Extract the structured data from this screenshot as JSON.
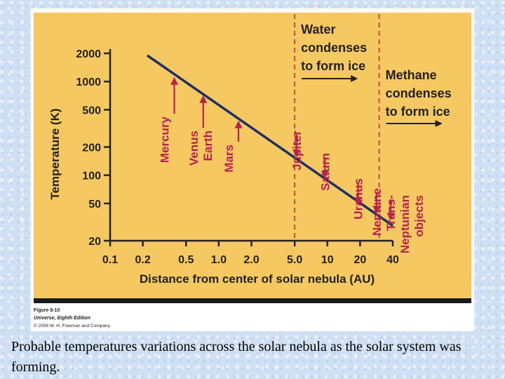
{
  "colors": {
    "panel": "#f6c862",
    "line": "#1c2f66",
    "planet": "#b8224e",
    "dashed": "#c0503a",
    "text": "#222222",
    "bottom_bar": "#1a1a1a"
  },
  "chart_data": {
    "type": "line",
    "title": "",
    "xlabel": "Distance from center of solar nebula (AU)",
    "ylabel": "Temperature (K)",
    "x_scale": "log",
    "y_scale": "log",
    "xlim": [
      0.1,
      40
    ],
    "ylim": [
      20,
      2000
    ],
    "x_ticks": [
      {
        "value": 0.1,
        "label": "0.1"
      },
      {
        "value": 0.2,
        "label": "0.2"
      },
      {
        "value": 0.5,
        "label": "0.5"
      },
      {
        "value": 1.0,
        "label": "1.0"
      },
      {
        "value": 2.0,
        "label": "2.0"
      },
      {
        "value": 5.0,
        "label": "5.0"
      },
      {
        "value": 10,
        "label": "10"
      },
      {
        "value": 20,
        "label": "20"
      },
      {
        "value": 40,
        "label": "40"
      }
    ],
    "y_ticks": [
      {
        "value": 2000,
        "label": "2000"
      },
      {
        "value": 1000,
        "label": "1000"
      },
      {
        "value": 500,
        "label": "500"
      },
      {
        "value": 200,
        "label": "200"
      },
      {
        "value": 100,
        "label": "100"
      },
      {
        "value": 50,
        "label": "50"
      },
      {
        "value": 20,
        "label": "20"
      }
    ],
    "series": [
      {
        "x": [
          0.22,
          40
        ],
        "y": [
          1900,
          29
        ]
      }
    ],
    "grid": false,
    "legend": "none",
    "condensation_lines": [
      {
        "x": 5.0,
        "lines": [
          "Water",
          "condenses",
          "to form ice"
        ]
      },
      {
        "x": 30,
        "lines": [
          "Methane",
          "condenses",
          "to form ice"
        ]
      }
    ],
    "planet_labels": [
      {
        "x": 0.39,
        "lines": [
          "Mercury"
        ]
      },
      {
        "x": 0.72,
        "lines": [
          "Venus",
          "Earth"
        ]
      },
      {
        "x": 1.52,
        "lines": [
          "Mars"
        ]
      },
      {
        "x": 5.2,
        "lines": [
          "Jupiter"
        ]
      },
      {
        "x": 9.5,
        "lines": [
          "Saturn"
        ]
      },
      {
        "x": 19.2,
        "lines": [
          "Uranus"
        ]
      },
      {
        "x": 30.1,
        "lines": [
          "Neptune"
        ]
      },
      {
        "x": 40,
        "lines": [
          "Trans-",
          "Neptunian",
          "objects"
        ]
      }
    ]
  },
  "figure_credit": {
    "line1": "Figure 8-10",
    "line2": "Universe, Eighth Edition",
    "line3": "© 2008 W. H. Freeman and Company"
  },
  "caption": "Probable temperatures variations across the solar nebula as the solar system was forming."
}
